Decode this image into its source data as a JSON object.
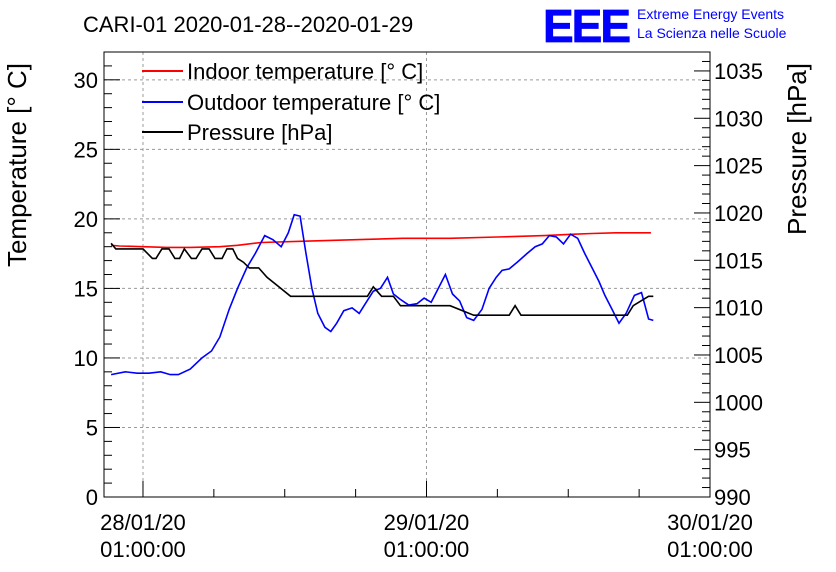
{
  "chart_data": {
    "type": "line",
    "title": "CARI-01 2020-01-28--2020-01-29",
    "ylabel": "Temperature [° C]",
    "y2label": "Pressure [hPa]",
    "ylim": [
      0,
      32
    ],
    "y2lim": [
      990,
      1037
    ],
    "yticks": [
      0,
      5,
      10,
      15,
      20,
      25,
      30
    ],
    "y2ticks": [
      990,
      995,
      1000,
      1005,
      1010,
      1015,
      1020,
      1025,
      1030,
      1035
    ],
    "x_unit": "hours since 28/01/20 01:00:00",
    "xlim": [
      -3.3,
      48
    ],
    "xticks": [
      {
        "x": 0,
        "date": "28/01/20",
        "time": "01:00:00"
      },
      {
        "x": 24,
        "date": "29/01/20",
        "time": "01:00:00"
      },
      {
        "x": 48,
        "date": "30/01/20",
        "time": "01:00:00"
      }
    ],
    "grid": true,
    "legend_position": "top-left",
    "series": [
      {
        "name": "Indoor temperature [° C]",
        "axis": "left",
        "color": "#ff0000",
        "x": [
          -2.7,
          -2.0,
          0,
          2.0,
          4.0,
          6.5,
          8.0,
          10.0,
          14.0,
          18.0,
          22.0,
          26.0,
          30.0,
          34.0,
          36.5,
          38.0,
          40.0,
          43.0
        ],
        "y": [
          18.1,
          18.05,
          18.0,
          17.95,
          17.95,
          18.0,
          18.1,
          18.3,
          18.4,
          18.5,
          18.6,
          18.6,
          18.7,
          18.8,
          18.9,
          18.95,
          19.0,
          19.0
        ]
      },
      {
        "name": "Outdoor temperature [° C]",
        "axis": "left",
        "color": "#0000ff",
        "x": [
          -2.7,
          -1.5,
          -0.5,
          0.5,
          1.5,
          2.3,
          3.0,
          4.0,
          5.0,
          5.8,
          6.5,
          7.3,
          8.0,
          8.8,
          9.5,
          10.3,
          11.0,
          11.7,
          12.3,
          12.8,
          13.3,
          13.8,
          14.3,
          14.8,
          15.4,
          15.9,
          16.4,
          17.0,
          17.7,
          18.3,
          18.9,
          19.5,
          20.1,
          20.7,
          21.2,
          21.8,
          22.5,
          23.2,
          23.8,
          24.4,
          25.0,
          25.6,
          26.2,
          26.8,
          27.4,
          28.0,
          28.7,
          29.3,
          29.9,
          30.4,
          31.0,
          31.7,
          32.5,
          33.2,
          33.8,
          34.4,
          35.0,
          35.6,
          36.2,
          36.8,
          37.4,
          38.0,
          38.6,
          39.1,
          39.7,
          40.3,
          40.9,
          41.6,
          42.2,
          42.8,
          43.2
        ],
        "y": [
          8.8,
          9.0,
          8.9,
          8.9,
          9.0,
          8.8,
          8.8,
          9.2,
          10.0,
          10.5,
          11.5,
          13.5,
          15.0,
          16.5,
          17.5,
          18.8,
          18.5,
          18.0,
          19.0,
          20.3,
          20.2,
          17.5,
          15.0,
          13.2,
          12.2,
          11.9,
          12.5,
          13.4,
          13.6,
          13.2,
          14.0,
          14.8,
          15.0,
          15.8,
          14.6,
          14.2,
          13.8,
          13.9,
          14.3,
          14.0,
          15.0,
          16.0,
          14.6,
          14.1,
          12.9,
          12.7,
          13.5,
          15.0,
          15.8,
          16.3,
          16.4,
          16.9,
          17.5,
          18.0,
          18.2,
          18.8,
          18.7,
          18.2,
          18.9,
          18.6,
          17.5,
          16.5,
          15.5,
          14.5,
          13.5,
          12.5,
          13.2,
          14.5,
          14.7,
          12.8,
          12.7
        ]
      },
      {
        "name": "Pressure [hPa]",
        "axis": "right",
        "color": "#000000",
        "x": [
          -2.7,
          -2.3,
          -1.5,
          0,
          0.8,
          1.1,
          1.6,
          2.2,
          2.7,
          3.1,
          3.5,
          4.1,
          4.5,
          5.0,
          5.6,
          6.1,
          6.7,
          7.1,
          7.6,
          8.0,
          8.5,
          9.0,
          9.8,
          10.5,
          11.5,
          12.5,
          14.0,
          15.0,
          16.0,
          16.7,
          17.3,
          18.0,
          19.0,
          19.5,
          20.2,
          20.9,
          21.2,
          21.8,
          22.4,
          23.5,
          24.0,
          26.0,
          28.0,
          30.0,
          31.0,
          31.5,
          32.0,
          33.0,
          35.0,
          37.0,
          40.0,
          41.0,
          41.5,
          42.8,
          43.2
        ],
        "y": [
          1016.8,
          1016.2,
          1016.2,
          1016.2,
          1015.2,
          1015.2,
          1016.2,
          1016.2,
          1015.2,
          1015.2,
          1016.2,
          1015.2,
          1015.2,
          1016.2,
          1016.2,
          1015.2,
          1015.2,
          1016.2,
          1016.2,
          1015.2,
          1014.8,
          1014.2,
          1014.2,
          1013.2,
          1012.2,
          1011.2,
          1011.2,
          1011.2,
          1011.2,
          1011.2,
          1011.2,
          1011.2,
          1011.2,
          1012.2,
          1011.2,
          1011.2,
          1011.2,
          1010.2,
          1010.2,
          1010.2,
          1010.2,
          1010.2,
          1009.2,
          1009.2,
          1009.2,
          1010.2,
          1009.2,
          1009.2,
          1009.2,
          1009.2,
          1009.2,
          1009.2,
          1010.2,
          1011.2,
          1011.2
        ]
      }
    ]
  },
  "logo": {
    "mark": "EEE",
    "line1": "Extreme Energy Events",
    "line2": "La Scienza nelle Scuole",
    "color": "#0000ff"
  }
}
